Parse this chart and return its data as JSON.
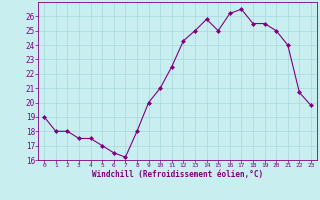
{
  "x": [
    0,
    1,
    2,
    3,
    4,
    5,
    6,
    7,
    8,
    9,
    10,
    11,
    12,
    13,
    14,
    15,
    16,
    17,
    18,
    19,
    20,
    21,
    22,
    23
  ],
  "y": [
    19,
    18,
    18,
    17.5,
    17.5,
    17,
    16.5,
    16.2,
    18,
    20,
    21,
    22.5,
    24.3,
    25,
    25.8,
    25,
    26.2,
    26.5,
    25.5,
    25.5,
    25,
    24,
    20.7,
    19.8
  ],
  "line_color": "#800080",
  "marker": "D",
  "marker_size": 2.0,
  "bg_color": "#c8eef0",
  "grid_color": "#a8d8dc",
  "xlabel": "Windchill (Refroidissement éolien,°C)",
  "xlabel_color": "#800080",
  "tick_color": "#800080",
  "ylim": [
    16,
    27
  ],
  "xlim": [
    -0.5,
    23.5
  ],
  "yticks": [
    16,
    17,
    18,
    19,
    20,
    21,
    22,
    23,
    24,
    25,
    26
  ],
  "xticks": [
    0,
    1,
    2,
    3,
    4,
    5,
    6,
    7,
    8,
    9,
    10,
    11,
    12,
    13,
    14,
    15,
    16,
    17,
    18,
    19,
    20,
    21,
    22,
    23
  ]
}
